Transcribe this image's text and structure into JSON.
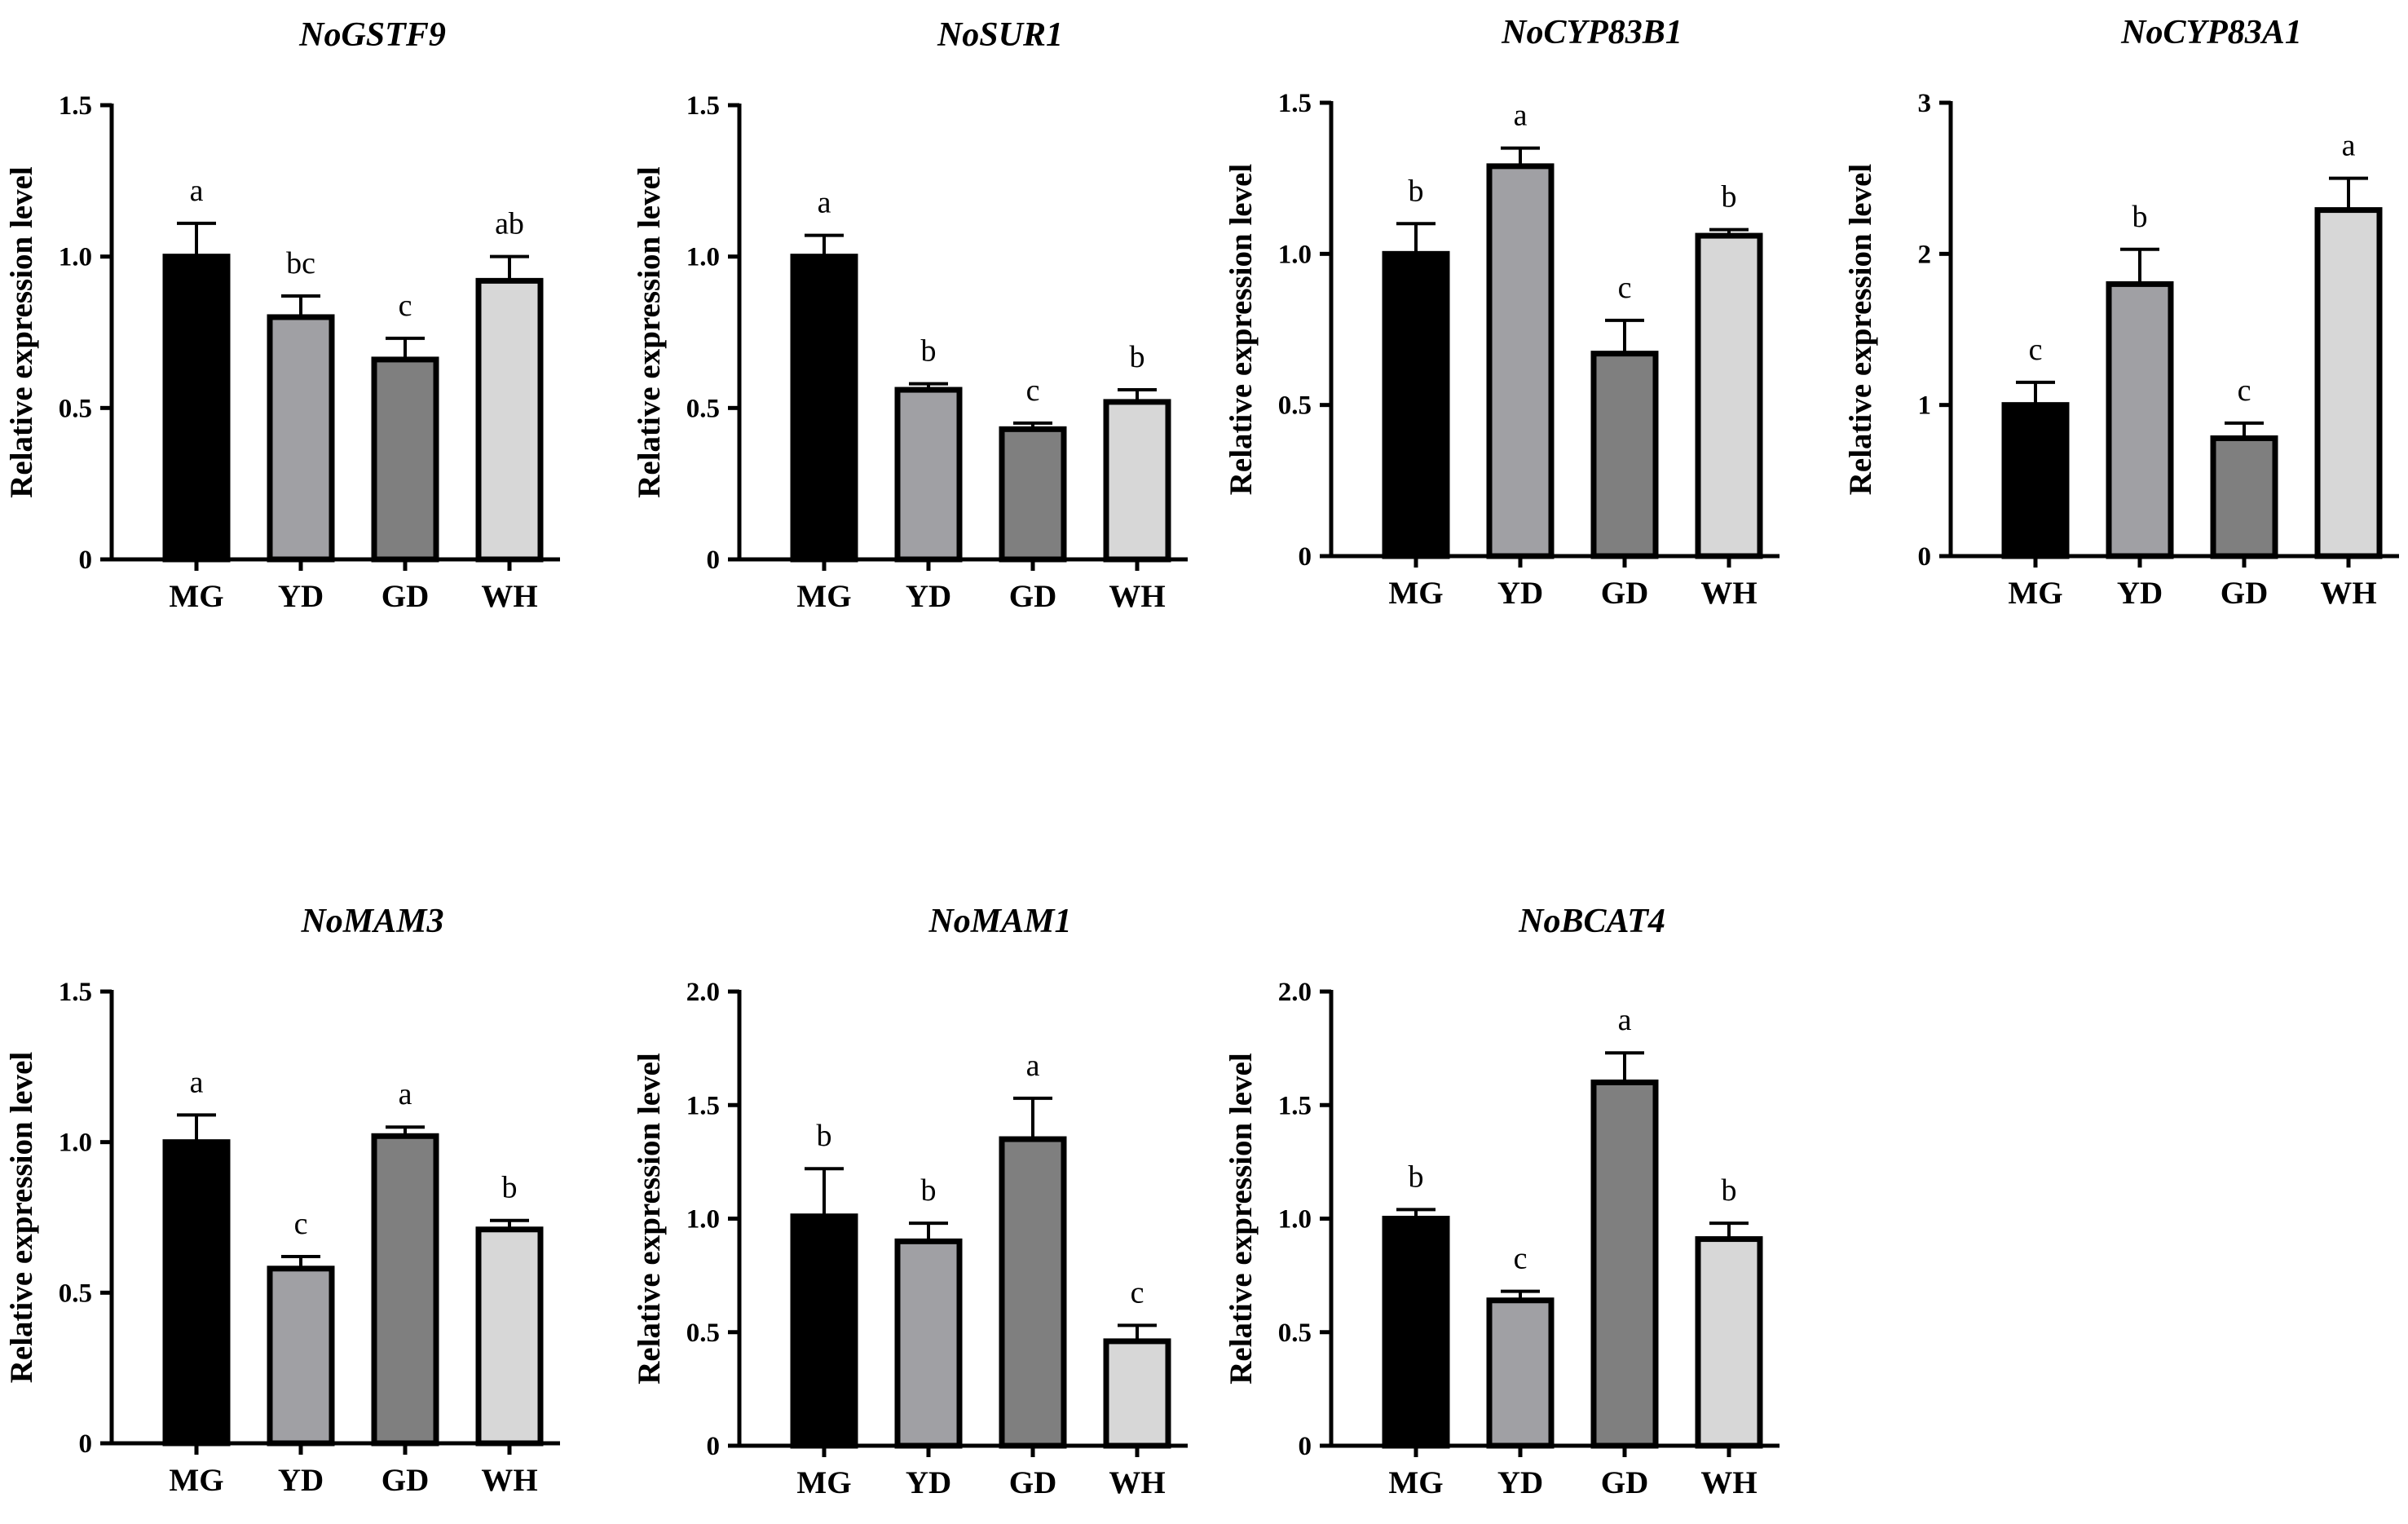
{
  "colors": {
    "MG": "#000000",
    "YD": "#a0a0a4",
    "GD": "#7f7f7f",
    "WH": "#d7d7d7",
    "outline": "#000000"
  },
  "chart_data": [
    {
      "type": "bar",
      "title": "NoGSTF9",
      "ylabel": "Relative expression level",
      "categories": [
        "MG",
        "YD",
        "GD",
        "WH"
      ],
      "values": [
        1.0,
        0.8,
        0.66,
        0.92
      ],
      "errors": [
        0.11,
        0.07,
        0.07,
        0.08
      ],
      "letters": [
        "a",
        "bc",
        "c",
        "ab"
      ],
      "ylim": [
        0,
        1.5
      ],
      "yticks": [
        0,
        0.5,
        1.0,
        1.5
      ],
      "yticklabels": [
        "0",
        "0.5",
        "1.0",
        "1.5"
      ]
    },
    {
      "type": "bar",
      "title": "NoSUR1",
      "ylabel": "Relative expression level",
      "categories": [
        "MG",
        "YD",
        "GD",
        "WH"
      ],
      "values": [
        1.0,
        0.56,
        0.43,
        0.52
      ],
      "errors": [
        0.07,
        0.02,
        0.02,
        0.04
      ],
      "letters": [
        "a",
        "b",
        "c",
        "b"
      ],
      "ylim": [
        0,
        1.5
      ],
      "yticks": [
        0,
        0.5,
        1.0,
        1.5
      ],
      "yticklabels": [
        "0",
        "0.5",
        "1.0",
        "1.5"
      ]
    },
    {
      "type": "bar",
      "title": "NoCYP83B1",
      "ylabel": "Relative expression level",
      "categories": [
        "MG",
        "YD",
        "GD",
        "WH"
      ],
      "values": [
        1.0,
        1.29,
        0.67,
        1.06
      ],
      "errors": [
        0.1,
        0.06,
        0.11,
        0.02
      ],
      "letters": [
        "b",
        "a",
        "c",
        "b"
      ],
      "ylim": [
        0,
        1.5
      ],
      "yticks": [
        0,
        0.5,
        1.0,
        1.5
      ],
      "yticklabels": [
        "0",
        "0.5",
        "1.0",
        "1.5"
      ]
    },
    {
      "type": "bar",
      "title": "NoCYP83A1",
      "ylabel": "Relative expression level",
      "categories": [
        "MG",
        "YD",
        "GD",
        "WH"
      ],
      "values": [
        1.0,
        1.8,
        0.78,
        2.29
      ],
      "errors": [
        0.15,
        0.23,
        0.1,
        0.21
      ],
      "letters": [
        "c",
        "b",
        "c",
        "a"
      ],
      "ylim": [
        0,
        3
      ],
      "yticks": [
        0,
        1,
        2,
        3
      ],
      "yticklabels": [
        "0",
        "1",
        "2",
        "3"
      ]
    },
    {
      "type": "bar",
      "title": "NoMAM3",
      "ylabel": "Relative expression level",
      "categories": [
        "MG",
        "YD",
        "GD",
        "WH"
      ],
      "values": [
        1.0,
        0.58,
        1.02,
        0.71
      ],
      "errors": [
        0.09,
        0.04,
        0.03,
        0.03
      ],
      "letters": [
        "a",
        "c",
        "a",
        "b"
      ],
      "ylim": [
        0,
        1.5
      ],
      "yticks": [
        0,
        0.5,
        1.0,
        1.5
      ],
      "yticklabels": [
        "0",
        "0.5",
        "1.0",
        "1.5"
      ]
    },
    {
      "type": "bar",
      "title": "NoMAM1",
      "ylabel": "Relative expression level",
      "categories": [
        "MG",
        "YD",
        "GD",
        "WH"
      ],
      "values": [
        1.01,
        0.9,
        1.35,
        0.46
      ],
      "errors": [
        0.21,
        0.08,
        0.18,
        0.07
      ],
      "letters": [
        "b",
        "b",
        "a",
        "c"
      ],
      "ylim": [
        0,
        2.0
      ],
      "yticks": [
        0,
        0.5,
        1.0,
        1.5,
        2.0
      ],
      "yticklabels": [
        "0",
        "0.5",
        "1.0",
        "1.5",
        "2.0"
      ]
    },
    {
      "type": "bar",
      "title": "NoBCAT4",
      "ylabel": "Relative expression level",
      "categories": [
        "MG",
        "YD",
        "GD",
        "WH"
      ],
      "values": [
        1.0,
        0.64,
        1.6,
        0.91
      ],
      "errors": [
        0.04,
        0.04,
        0.13,
        0.07
      ],
      "letters": [
        "b",
        "c",
        "a",
        "b"
      ],
      "ylim": [
        0,
        2.0
      ],
      "yticks": [
        0,
        0.5,
        1.0,
        1.5,
        2.0
      ],
      "yticklabels": [
        "0",
        "0.5",
        "1.0",
        "1.5",
        "2.0"
      ]
    }
  ]
}
